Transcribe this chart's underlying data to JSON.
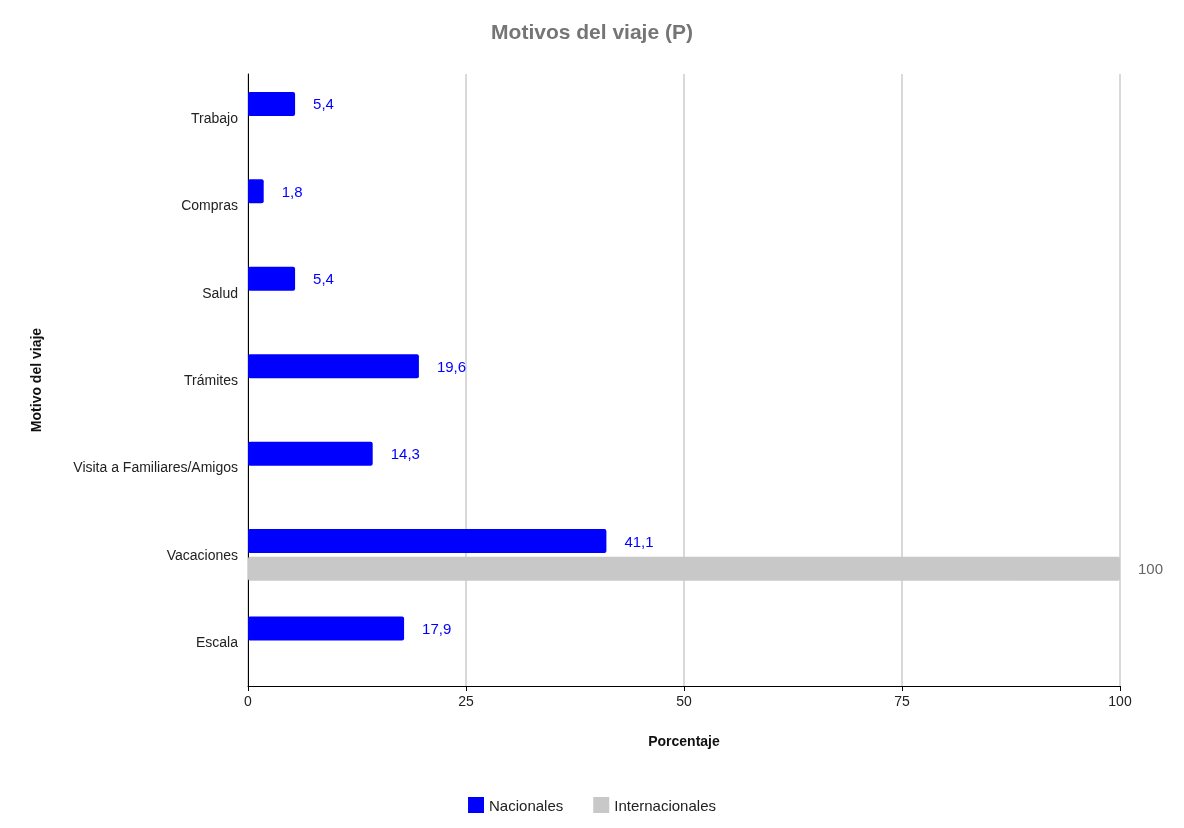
{
  "chart_data": {
    "type": "bar",
    "orientation": "horizontal",
    "title": "Motivos del viaje (P)",
    "xlabel": "Porcentaje",
    "ylabel": "Motivo del viaje",
    "categories": [
      "Trabajo",
      "Compras",
      "Salud",
      "Trámites",
      "Visita a Familiares/Amigos",
      "Vacaciones",
      "Escala"
    ],
    "series": [
      {
        "name": "Nacionales",
        "color": "#0000ff",
        "values": [
          5.4,
          1.8,
          5.4,
          19.6,
          14.3,
          41.1,
          17.9
        ],
        "value_labels": [
          "5,4",
          "1,8",
          "5,4",
          "19,6",
          "14,3",
          "41,1",
          "17,9"
        ]
      },
      {
        "name": "Internacionales",
        "color": "#c8c8c8",
        "values": [
          null,
          null,
          null,
          null,
          null,
          100,
          null
        ],
        "value_labels": [
          null,
          null,
          null,
          null,
          null,
          "100",
          null
        ]
      }
    ],
    "xlim": [
      0,
      100
    ],
    "xticks": [
      0,
      25,
      50,
      75,
      100
    ],
    "grid": "x",
    "legend": "bottom"
  }
}
